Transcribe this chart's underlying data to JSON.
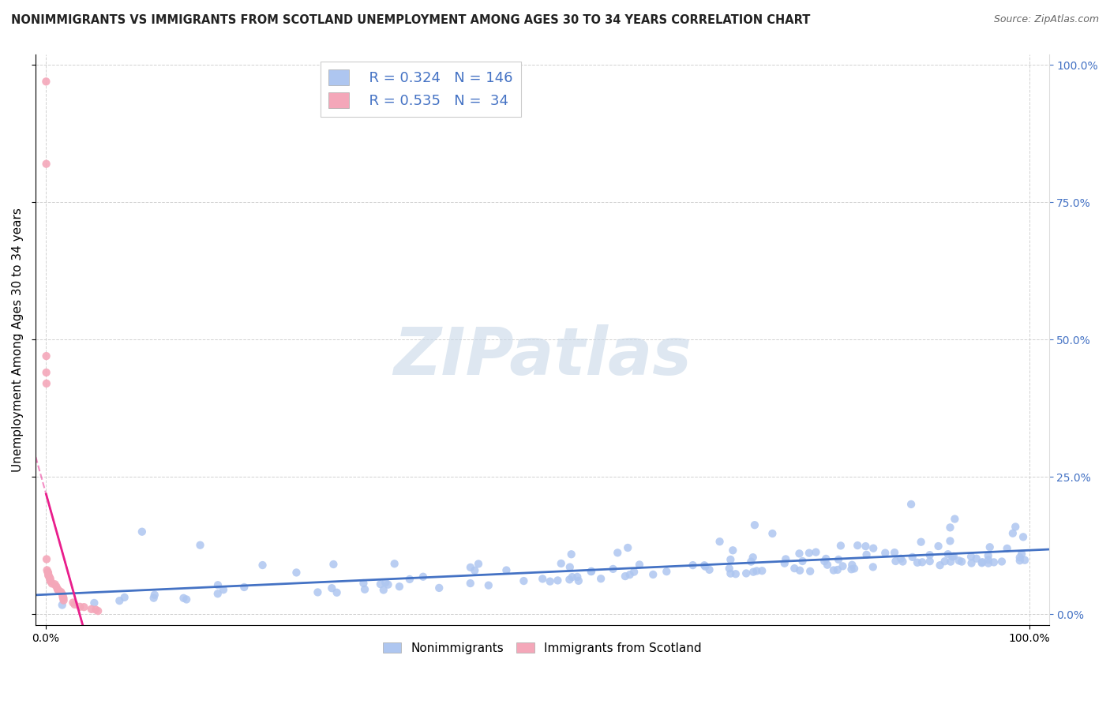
{
  "title": "NONIMMIGRANTS VS IMMIGRANTS FROM SCOTLAND UNEMPLOYMENT AMONG AGES 30 TO 34 YEARS CORRELATION CHART",
  "source": "Source: ZipAtlas.com",
  "ylabel": "Unemployment Among Ages 30 to 34 years",
  "watermark": "ZIPatlas",
  "nonimmigrant_color": "#aec6f0",
  "immigrant_color": "#f4a7b9",
  "nonimmigrant_line_color": "#4472c4",
  "immigrant_line_color": "#e91e8c",
  "right_axis_color": "#4472c4",
  "background_color": "#ffffff",
  "grid_color": "#cccccc",
  "watermark_color": "#c8d8e8",
  "title_fontsize": 10.5,
  "axis_label_fontsize": 11,
  "tick_fontsize": 10,
  "legend_fontsize": 13,
  "watermark_fontsize": 60,
  "R_nonimm": 0.324,
  "N_nonimm": 146,
  "R_imm": 0.535,
  "N_imm": 34
}
